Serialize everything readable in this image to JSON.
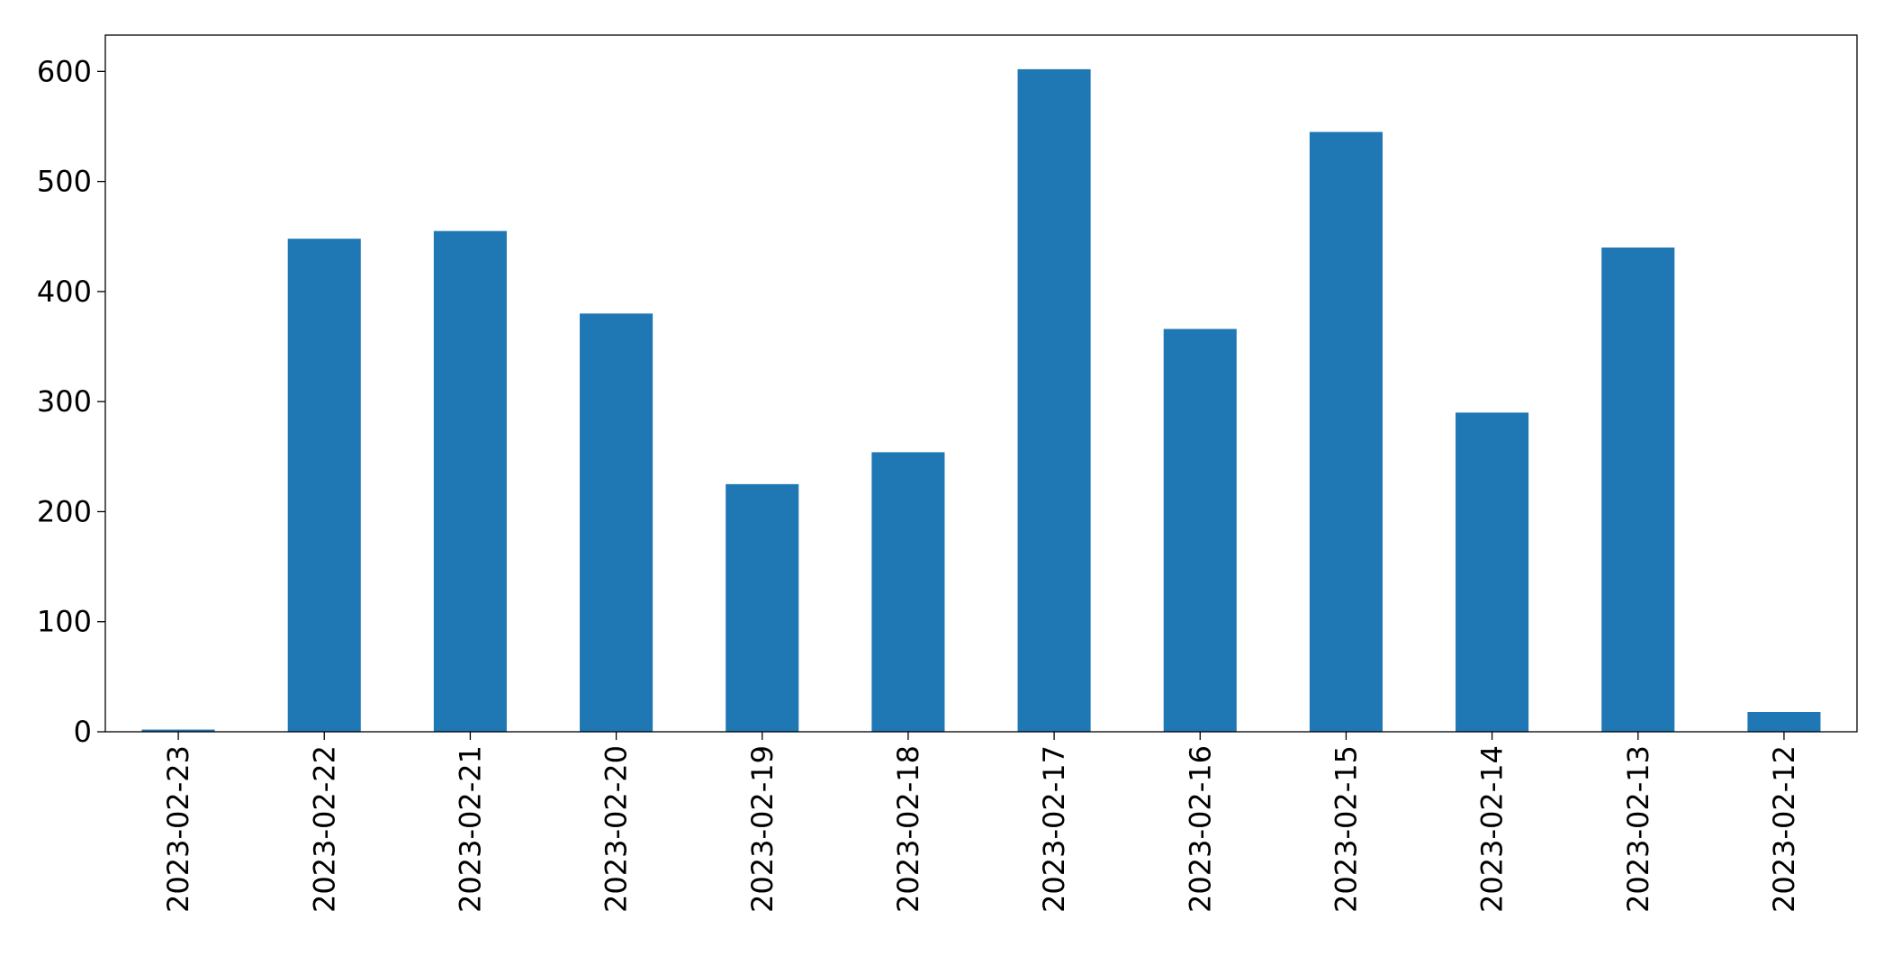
{
  "chart_data": {
    "type": "bar",
    "categories": [
      "2023-02-23",
      "2023-02-22",
      "2023-02-21",
      "2023-02-20",
      "2023-02-19",
      "2023-02-18",
      "2023-02-17",
      "2023-02-16",
      "2023-02-15",
      "2023-02-14",
      "2023-02-13",
      "2023-02-12"
    ],
    "values": [
      2,
      448,
      455,
      380,
      225,
      254,
      602,
      366,
      545,
      290,
      440,
      18
    ],
    "color": "#1f77b4",
    "ylim": [
      0,
      633
    ],
    "yticks": [
      0,
      100,
      200,
      300,
      400,
      500,
      600
    ],
    "grid": false
  }
}
